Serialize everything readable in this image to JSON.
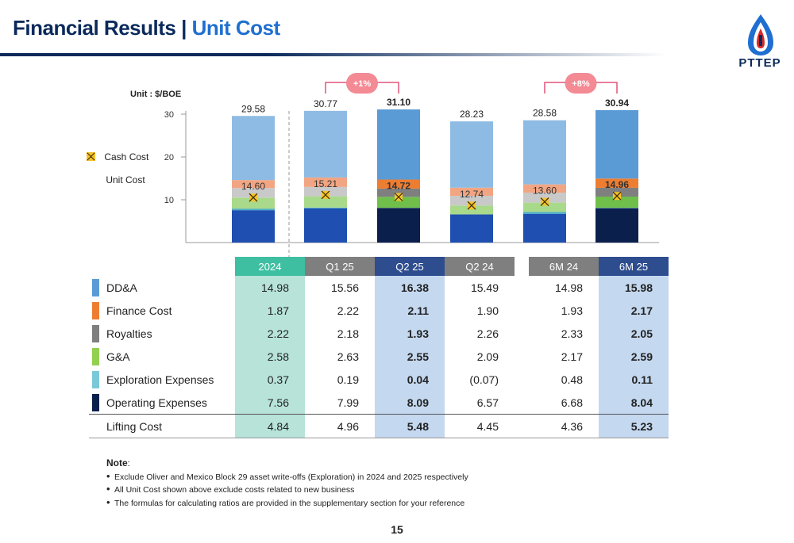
{
  "title": {
    "part1": "Financial Results |",
    "part2": "Unit Cost"
  },
  "logo": {
    "name": "PTTEP",
    "icon": "pttep-flame-icon"
  },
  "unit_label": "Unit : $/BOE",
  "legend": {
    "cash_cost": "Cash Cost",
    "unit_cost": "Unit Cost"
  },
  "colors": {
    "header_2024": "#3fbfa1",
    "header_grey": "#7f7f7f",
    "header_blue": "#2e4d8f",
    "fill_2024": "#b7e3d9",
    "fill_blue": "#c4d8ef",
    "badge": "#f38a94",
    "bracket": "#e0557a"
  },
  "chart_data": {
    "type": "bar",
    "stacked": true,
    "unit": "$/BOE",
    "categories": [
      "2024",
      "Q1 25",
      "Q2 25",
      "Q2 24",
      "6M 24",
      "6M 25"
    ],
    "ylim": [
      0,
      30
    ],
    "yticks": [
      10,
      20,
      30
    ],
    "series": [
      {
        "name": "Operating Expenses",
        "values": [
          7.56,
          7.99,
          8.09,
          6.57,
          6.68,
          8.04
        ]
      },
      {
        "name": "Exploration Expenses",
        "values": [
          0.37,
          0.19,
          0.04,
          -0.07,
          0.48,
          0.11
        ]
      },
      {
        "name": "G&A",
        "values": [
          2.58,
          2.63,
          2.55,
          2.09,
          2.17,
          2.59
        ]
      },
      {
        "name": "Royalties",
        "values": [
          2.22,
          2.18,
          1.93,
          2.26,
          2.33,
          2.05
        ]
      },
      {
        "name": "Finance Cost",
        "values": [
          1.87,
          2.22,
          2.11,
          1.9,
          1.93,
          2.17
        ]
      },
      {
        "name": "DD&A",
        "values": [
          14.98,
          15.56,
          16.38,
          15.49,
          14.98,
          15.98
        ]
      }
    ],
    "unit_cost_labels": [
      "29.58",
      "30.77",
      "31.10",
      "28.23",
      "28.58",
      "30.94"
    ],
    "cash_cost_values": [
      14.6,
      15.21,
      14.72,
      12.74,
      13.6,
      14.96
    ],
    "cash_cost_labels": [
      "14.60",
      "15.21",
      "14.72",
      "12.74",
      "13.60",
      "14.96"
    ],
    "highlight": [
      false,
      false,
      true,
      false,
      false,
      true
    ],
    "comparisons": [
      {
        "from": "Q1 25",
        "to": "Q2 25",
        "label": "+1%"
      },
      {
        "from": "6M 24",
        "to": "6M 25",
        "label": "+8%"
      }
    ]
  },
  "table": {
    "columns": [
      "2024",
      "Q1 25",
      "Q2 25",
      "Q2 24",
      "6M 24",
      "6M 25"
    ],
    "rows": [
      {
        "label": "DD&A",
        "values": [
          "14.98",
          "15.56",
          "16.38",
          "15.49",
          "14.98",
          "15.98"
        ]
      },
      {
        "label": "Finance Cost",
        "values": [
          "1.87",
          "2.22",
          "2.11",
          "1.90",
          "1.93",
          "2.17"
        ]
      },
      {
        "label": "Royalties",
        "values": [
          "2.22",
          "2.18",
          "1.93",
          "2.26",
          "2.33",
          "2.05"
        ]
      },
      {
        "label": "G&A",
        "values": [
          "2.58",
          "2.63",
          "2.55",
          "2.09",
          "2.17",
          "2.59"
        ]
      },
      {
        "label": "Exploration Expenses",
        "values": [
          "0.37",
          "0.19",
          "0.04",
          "(0.07)",
          "0.48",
          "0.11"
        ]
      },
      {
        "label": "Operating Expenses",
        "values": [
          "7.56",
          "7.99",
          "8.09",
          "6.57",
          "6.68",
          "8.04"
        ]
      }
    ],
    "total_row": {
      "label": "Lifting Cost",
      "values": [
        "4.84",
        "4.96",
        "5.48",
        "4.45",
        "4.36",
        "5.23"
      ]
    }
  },
  "notes": {
    "heading": "Note",
    "items": [
      "Exclude Oliver and Mexico Block 29 asset write-offs (Exploration) in 2024 and 2025 respectively",
      "All Unit Cost shown above exclude costs related to new business",
      "The formulas for calculating ratios are provided in the supplementary section for your reference"
    ]
  },
  "page_number": "15"
}
